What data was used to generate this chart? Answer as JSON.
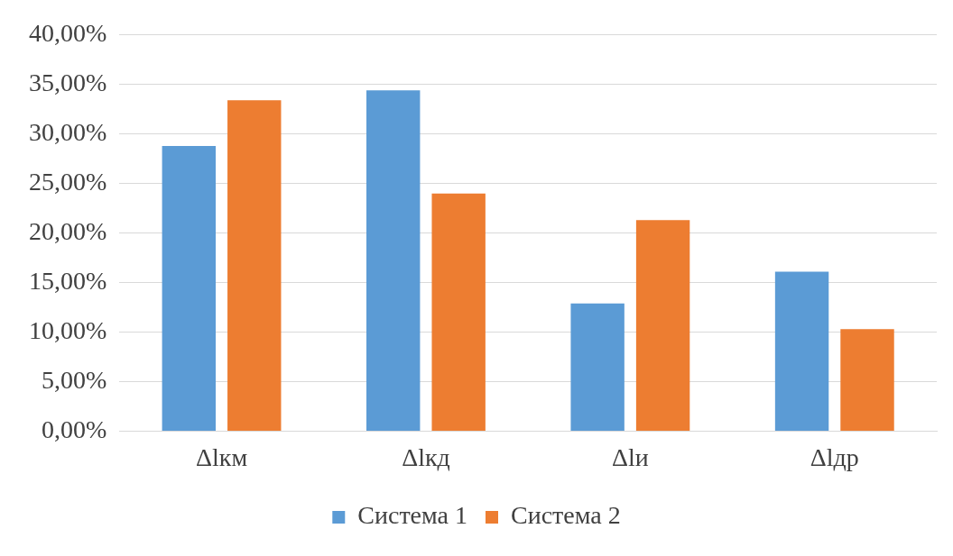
{
  "chart_data": {
    "type": "bar",
    "categories": [
      "Δlкм",
      "Δlкд",
      "Δlи",
      "Δlдр"
    ],
    "series": [
      {
        "name": "Система 1",
        "color": "#5b9bd5",
        "values": [
          28.8,
          34.4,
          12.9,
          16.1
        ]
      },
      {
        "name": "Система 2",
        "color": "#ed7d31",
        "values": [
          33.4,
          24.0,
          21.3,
          10.3
        ]
      }
    ],
    "ylim": [
      0,
      40
    ],
    "yticks": [
      {
        "value": 0,
        "label": "0,00%"
      },
      {
        "value": 5,
        "label": "5,00%"
      },
      {
        "value": 10,
        "label": "10,00%"
      },
      {
        "value": 15,
        "label": "15,00%"
      },
      {
        "value": 20,
        "label": "20,00%"
      },
      {
        "value": 25,
        "label": "25,00%"
      },
      {
        "value": 30,
        "label": "30,00%"
      },
      {
        "value": 35,
        "label": "35,00%"
      },
      {
        "value": 40,
        "label": "40,00%"
      }
    ],
    "grid": "y",
    "legend": "bottom"
  }
}
